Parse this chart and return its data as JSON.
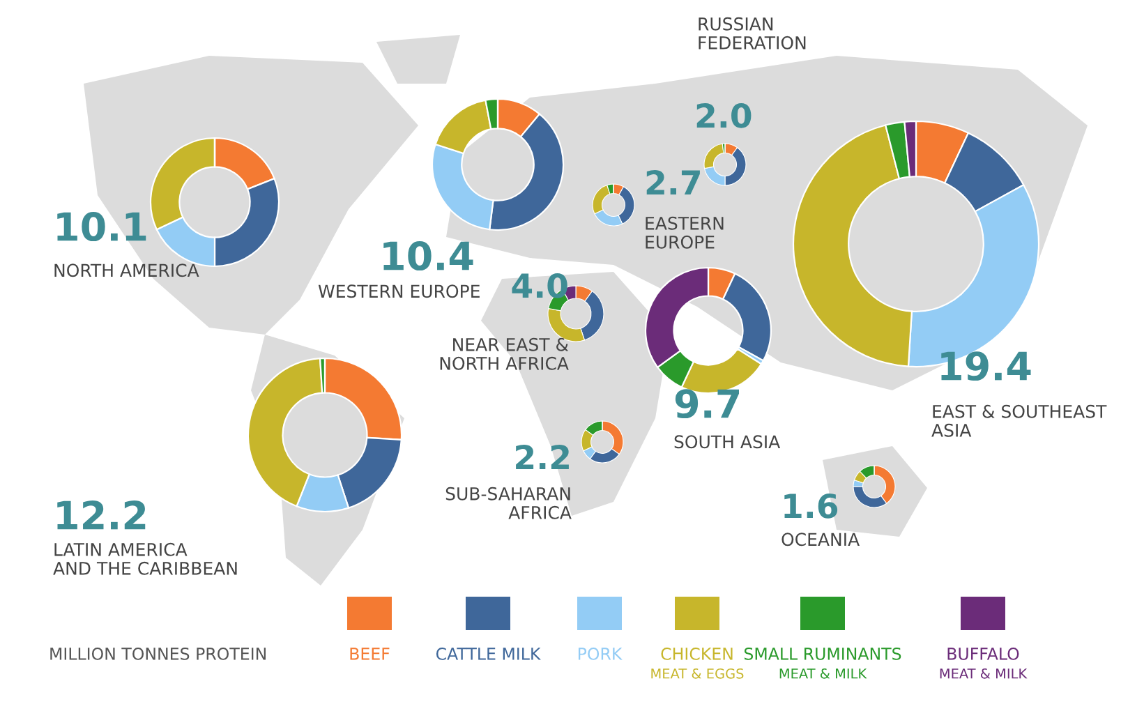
{
  "chart_data": [
    {
      "type": "donut",
      "title": "NORTH AMERICA",
      "subtitle": "10.1",
      "categories": [
        "BEEF",
        "CATTLE MILK",
        "PORK",
        "CHICKEN\nMEAT & EGGS",
        "SMALL RUMINANTS\nMEAT & MILK",
        "BUFFALO\nMEAT & MILK"
      ],
      "values": [
        19,
        31,
        18,
        32,
        0,
        0
      ],
      "colors": [
        "#f47a32",
        "#3f679a",
        "#93ccf5",
        "#c7b62b",
        "#2a9a2b",
        "#6b2c79"
      ],
      "legend": "bottom",
      "annotations": [
        "MILLION TONNES PROTEIN"
      ]
    },
    {
      "type": "donut",
      "title": "WESTERN EUROPE",
      "subtitle": "10.4",
      "values": [
        11,
        41,
        28,
        17,
        3,
        0
      ],
      "colors": [
        "#f47a32",
        "#3f679a",
        "#93ccf5",
        "#c7b62b",
        "#2a9a2b",
        "#6b2c79"
      ]
    },
    {
      "type": "donut",
      "title": "RUSSIAN\nFEDERATION",
      "subtitle": "2.0",
      "values": [
        10,
        40,
        22,
        26,
        2,
        0
      ],
      "colors": [
        "#f47a32",
        "#3f679a",
        "#93ccf5",
        "#c7b62b",
        "#2a9a2b",
        "#6b2c79"
      ]
    },
    {
      "type": "donut",
      "title": "EASTERN\nEUROPE",
      "subtitle": "2.7",
      "values": [
        8,
        35,
        25,
        27,
        5,
        0
      ],
      "colors": [
        "#f47a32",
        "#3f679a",
        "#93ccf5",
        "#c7b62b",
        "#2a9a2b",
        "#6b2c79"
      ]
    },
    {
      "type": "donut",
      "title": "NEAR EAST &\nNORTH AFRICA",
      "subtitle": "4.0",
      "values": [
        10,
        35,
        0,
        33,
        14,
        8
      ],
      "colors": [
        "#f47a32",
        "#3f679a",
        "#93ccf5",
        "#c7b62b",
        "#2a9a2b",
        "#6b2c79"
      ]
    },
    {
      "type": "donut",
      "title": "SOUTH ASIA",
      "subtitle": "9.7",
      "values": [
        7,
        26,
        1,
        23,
        8,
        35
      ],
      "colors": [
        "#f47a32",
        "#3f679a",
        "#93ccf5",
        "#c7b62b",
        "#2a9a2b",
        "#6b2c79"
      ]
    },
    {
      "type": "donut",
      "title": "EAST & SOUTHEAST\nASIA",
      "subtitle": "19.4",
      "values": [
        7,
        10,
        34,
        45,
        2.5,
        1.5
      ],
      "colors": [
        "#f47a32",
        "#3f679a",
        "#93ccf5",
        "#c7b62b",
        "#2a9a2b",
        "#6b2c79"
      ]
    },
    {
      "type": "donut",
      "title": "LATIN AMERICA\nAND THE CARIBBEAN",
      "subtitle": "12.2",
      "values": [
        26,
        19,
        11,
        43,
        1,
        0
      ],
      "colors": [
        "#f47a32",
        "#3f679a",
        "#93ccf5",
        "#c7b62b",
        "#2a9a2b",
        "#6b2c79"
      ]
    },
    {
      "type": "donut",
      "title": "SUB-SAHARAN\nAFRICA",
      "subtitle": "2.2",
      "values": [
        35,
        25,
        8,
        17,
        15,
        0
      ],
      "colors": [
        "#f47a32",
        "#3f679a",
        "#93ccf5",
        "#c7b62b",
        "#2a9a2b",
        "#6b2c79"
      ]
    },
    {
      "type": "donut",
      "title": "OCEANIA",
      "subtitle": "1.6",
      "values": [
        40,
        35,
        5,
        8,
        12,
        0
      ],
      "colors": [
        "#f47a32",
        "#3f679a",
        "#93ccf5",
        "#c7b62b",
        "#2a9a2b",
        "#6b2c79"
      ]
    }
  ]
}
